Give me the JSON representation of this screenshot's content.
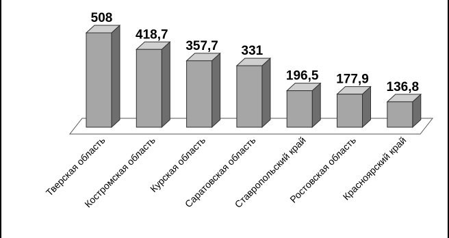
{
  "chart_data": {
    "type": "bar",
    "style": "3d-column",
    "categories": [
      "Тверская область",
      "Костромская область",
      "Курская область",
      "Саратовская область",
      "Ставропольский край",
      "Ростовская область",
      "Красноярский край"
    ],
    "values": [
      508,
      418.7,
      357.7,
      331,
      196.5,
      177.9,
      136.8
    ],
    "value_labels": [
      "508",
      "418,7",
      "357,7",
      "331",
      "196,5",
      "177,9",
      "136,8"
    ],
    "title": "",
    "xlabel": "",
    "ylabel": "",
    "ylim": [
      0,
      508
    ],
    "grid": false,
    "legend": "none",
    "colors": {
      "bar_front": "#a6a6a6",
      "bar_side": "#6e6e6e",
      "bar_top": "#cfcfcf",
      "outline": "#303030",
      "floor": "#ffffff"
    }
  }
}
